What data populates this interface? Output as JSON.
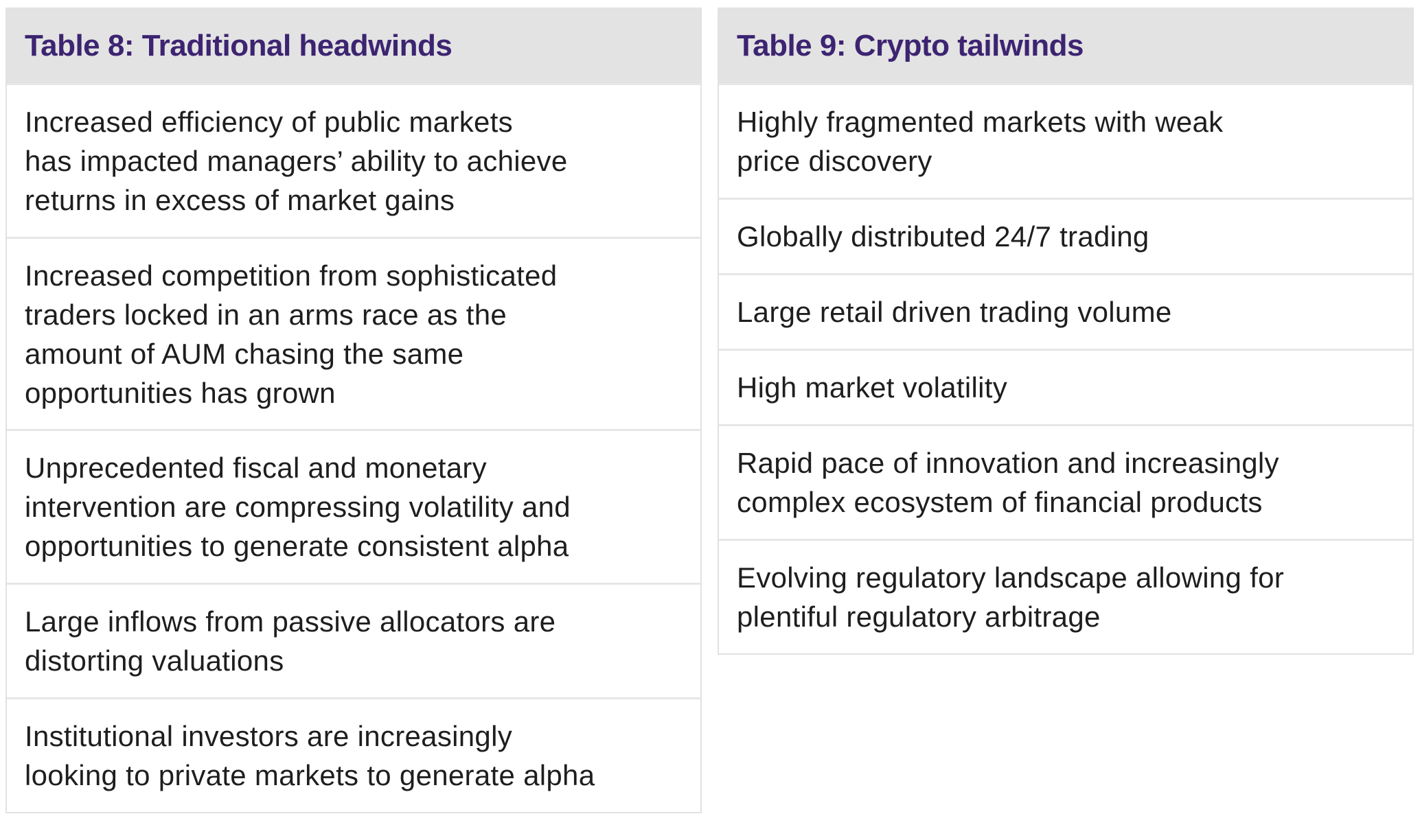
{
  "tables": [
    {
      "title": "Table 8: Traditional headwinds",
      "rows": [
        "Increased efficiency of public markets\nhas impacted managers’ ability to achieve\nreturns in excess of market gains",
        "Increased competition from sophisticated\ntraders locked in an arms race as the\namount of AUM chasing the same\nopportunities has grown",
        "Unprecedented fiscal and monetary\nintervention are compressing volatility and\nopportunities to generate consistent alpha",
        "Large inflows from passive allocators are\ndistorting valuations",
        "Institutional investors are increasingly\nlooking to private markets to generate alpha"
      ]
    },
    {
      "title": "Table 9: Crypto tailwinds",
      "rows": [
        "Highly fragmented markets with weak\nprice discovery",
        "Globally distributed 24/7 trading",
        "Large retail driven trading volume",
        "High market volatility",
        "Rapid pace of innovation and increasingly\ncomplex ecosystem of financial products",
        "Evolving regulatory landscape allowing for\nplentiful regulatory arbitrage"
      ]
    }
  ],
  "colors": {
    "header_bg": "#e3e3e3",
    "header_text": "#3d2471",
    "body_text": "#1e1e1e",
    "border": "#e2e2e2"
  }
}
